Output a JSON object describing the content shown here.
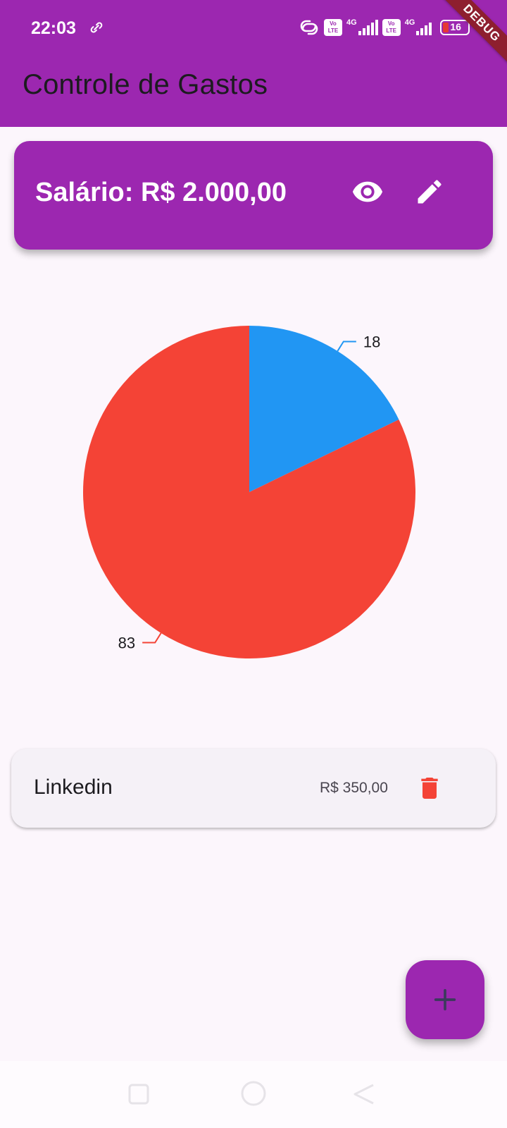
{
  "status_bar": {
    "time": "22:03",
    "network_label_1": "4G",
    "network_label_2": "4G",
    "lte_label_1": "Vo LTE",
    "lte_label_2": "Vo LTE",
    "battery": "16"
  },
  "app_bar": {
    "title": "Controle de Gastos",
    "debug_banner": "DEBUG"
  },
  "salary_card": {
    "label": "Salário: R$ 2.000,00",
    "view_icon": "eye-icon",
    "edit_icon": "pencil-icon"
  },
  "chart_data": {
    "type": "pie",
    "values": [
      18,
      83
    ],
    "labels": [
      "18",
      "83"
    ],
    "colors": [
      "#2196f3",
      "#f44336"
    ]
  },
  "expenses": [
    {
      "name": "Linkedin",
      "value": "R$ 350,00",
      "delete_icon": "trash-icon",
      "delete_color": "#f44336"
    }
  ],
  "fab": {
    "icon": "plus-icon"
  },
  "nav_bar": {
    "icons": [
      "square-icon",
      "circle-icon",
      "triangle-back-icon"
    ]
  },
  "colors": {
    "primary": "#9c27b0",
    "background": "#fcf6fc",
    "card": "#f5f1f7",
    "text": "#1c1b1f"
  }
}
